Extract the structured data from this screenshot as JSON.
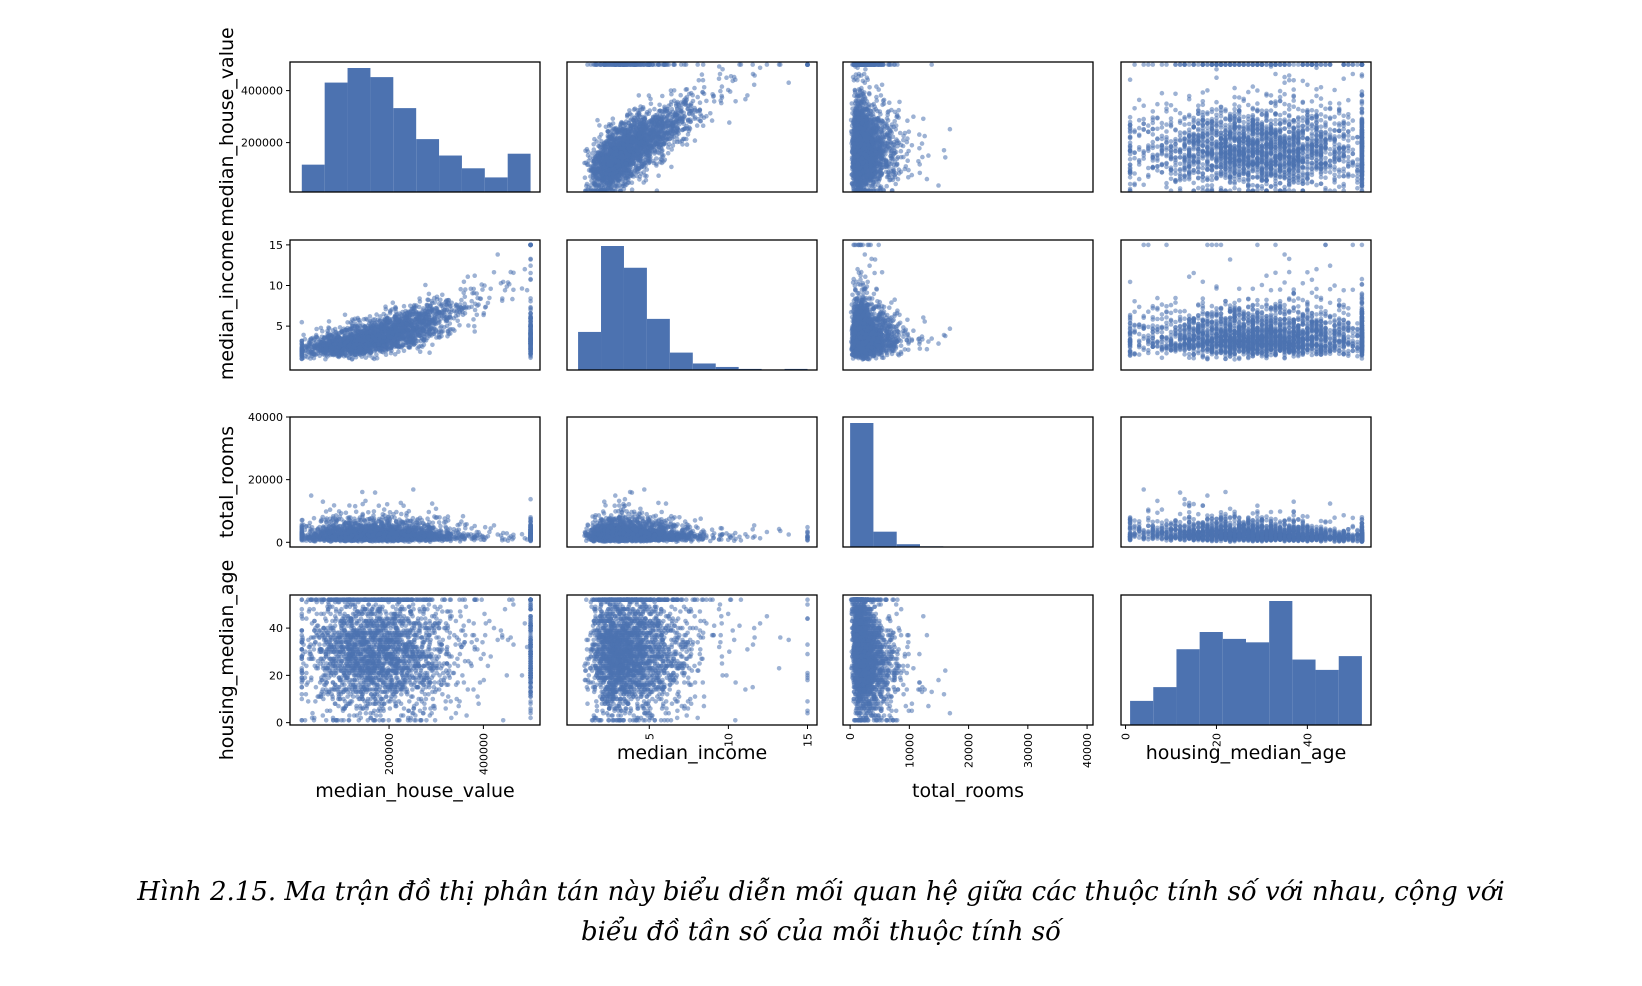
{
  "colors": {
    "points": "#4c72b0",
    "bars": "#4c72b0",
    "frame": "#000000"
  },
  "chart_data": {
    "type": "scatter",
    "variables": [
      "median_house_value",
      "median_income",
      "total_rooms",
      "housing_median_age"
    ],
    "diagonal": "hist",
    "ranges": {
      "median_house_value": [
        15000,
        500001
      ],
      "median_income": [
        0.5,
        15.0
      ],
      "total_rooms": [
        2,
        39320
      ],
      "housing_median_age": [
        1,
        52
      ]
    },
    "row_ticks": {
      "median_house_value": [
        "200000",
        "400000"
      ],
      "median_income": [
        "5",
        "10",
        "15"
      ],
      "total_rooms": [
        "0",
        "20000",
        "40000"
      ],
      "housing_median_age": [
        "0",
        "20",
        "40"
      ]
    },
    "col_ticks": {
      "median_house_value": [
        "200000",
        "400000"
      ],
      "median_income": [
        "5",
        "10",
        "15"
      ],
      "total_rooms": [
        "0",
        "10000",
        "20000",
        "30000",
        "40000"
      ],
      "housing_median_age": [
        "0",
        "20",
        "40"
      ]
    },
    "histograms": {
      "median_house_value": [
        750,
        3000,
        3400,
        3150,
        2300,
        1450,
        1000,
        650,
        400,
        1050
      ],
      "median_income": [
        1750,
        5700,
        4700,
        2350,
        800,
        300,
        140,
        50,
        25,
        50
      ],
      "total_rooms": [
        17800,
        2200,
        400,
        100,
        30,
        15,
        5,
        3,
        2,
        2
      ],
      "housing_median_age": [
        350,
        550,
        1100,
        1350,
        1250,
        1200,
        1800,
        950,
        800,
        1000
      ]
    },
    "x_labels": [
      "median_house_value",
      "median_income",
      "total_rooms",
      "housing_median_age"
    ],
    "y_labels": [
      "median_house_value",
      "median_income",
      "total_rooms",
      "housing_median_age"
    ]
  },
  "caption": {
    "line1": "Hình 2.15. Ma trận đồ thị phân tán này biểu diễn mối quan hệ giữa các thuộc tính số với nhau, cộng với",
    "line2": "biểu đồ tần số của mỗi thuộc tính số"
  }
}
